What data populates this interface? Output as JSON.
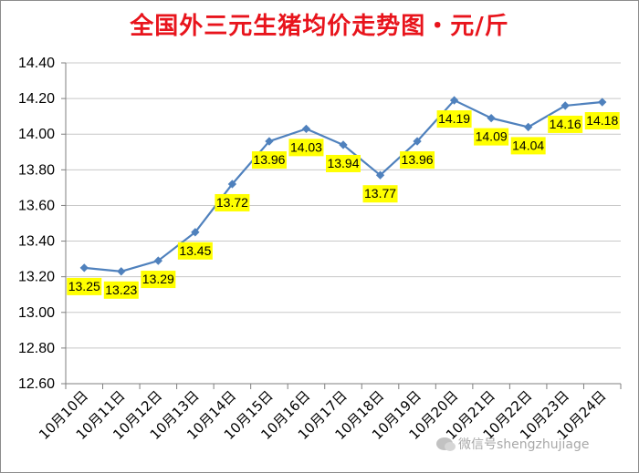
{
  "title": "全国外三元生猪均价走势图・元/斤",
  "watermark": "微信号shengzhujiage",
  "colors": {
    "title": "#e8141c",
    "line": "#4f81bd",
    "label_bg": "#ffff00",
    "grid": "#c8c8c8"
  },
  "chart_data": {
    "type": "line",
    "title": "全国外三元生猪均价走势图・元/斤",
    "xlabel": "",
    "ylabel": "",
    "ylim": [
      12.6,
      14.4
    ],
    "ytick_step": 0.2,
    "grid": true,
    "categories": [
      "10月10日",
      "10月11日",
      "10月12日",
      "10月13日",
      "10月14日",
      "10月15日",
      "10月16日",
      "10月17日",
      "10月18日",
      "10月19日",
      "10月20日",
      "10月21日",
      "10月22日",
      "10月23日",
      "10月24日"
    ],
    "values": [
      13.25,
      13.23,
      13.29,
      13.45,
      13.72,
      13.96,
      14.03,
      13.94,
      13.77,
      13.96,
      14.19,
      14.09,
      14.04,
      14.16,
      14.18
    ],
    "value_labels": [
      "13.25",
      "13.23",
      "13.29",
      "13.45",
      "13.72",
      "13.96",
      "14.03",
      "13.94",
      "13.77",
      "13.96",
      "14.19",
      "14.09",
      "14.04",
      "14.16",
      "14.18"
    ],
    "label_position": [
      "below",
      "below",
      "below",
      "below",
      "below",
      "below",
      "below",
      "below",
      "below",
      "below",
      "below",
      "below",
      "below",
      "below",
      "below"
    ]
  }
}
